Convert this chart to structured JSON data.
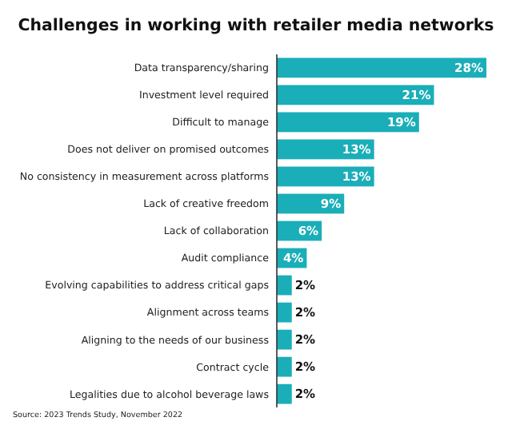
{
  "chart_data": {
    "type": "bar",
    "orientation": "horizontal",
    "xlim": [
      0,
      28
    ],
    "title": "Challenges in working with retailer media networks",
    "categories": [
      "Data transparency/sharing",
      "Investment level required",
      "Difficult to manage",
      "Does not deliver on promised outcomes",
      "No consistency in measurement across platforms",
      "Lack of creative freedom",
      "Lack of collaboration",
      "Audit compliance",
      "Evolving capabilities to address critical gaps",
      "Alignment across teams",
      "Aligning to the needs of our business",
      "Contract cycle",
      "Legalities due to alcohol beverage laws"
    ],
    "values": [
      28,
      21,
      19,
      13,
      13,
      9,
      6,
      4,
      2,
      2,
      2,
      2,
      2
    ],
    "value_labels": [
      "28%",
      "21%",
      "19%",
      "13%",
      "13%",
      "9%",
      "6%",
      "4%",
      "2%",
      "2%",
      "2%",
      "2%",
      "2%"
    ],
    "color": "#1aaeb8",
    "annotations": [
      "Source: 2023 Trends Study, November 2022"
    ]
  }
}
